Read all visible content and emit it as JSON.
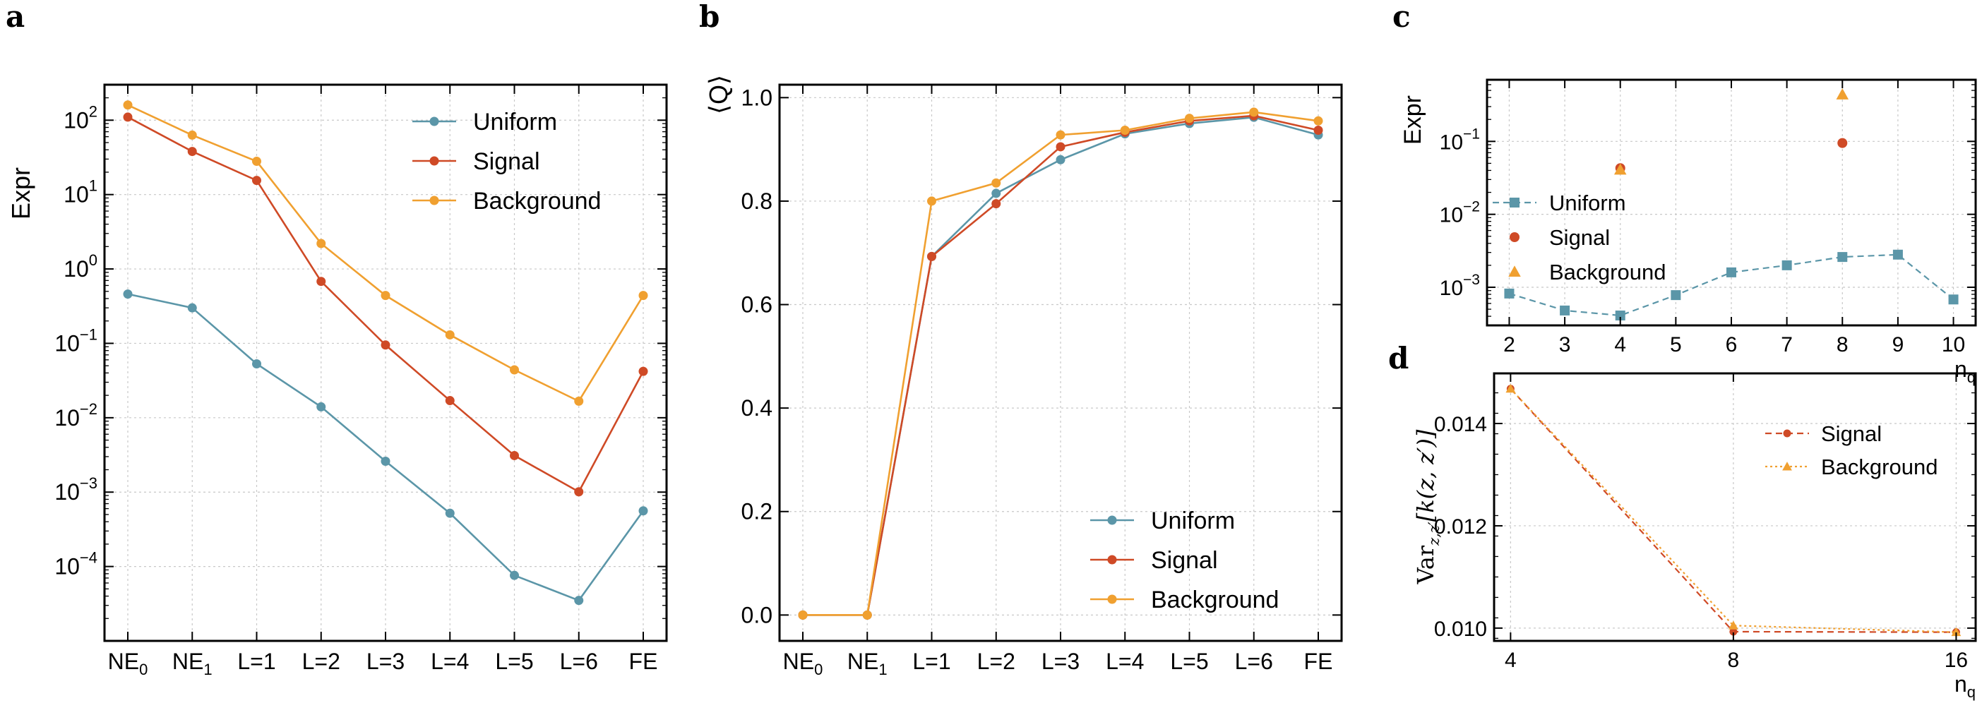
{
  "colors": {
    "uniform": "#5b96a8",
    "signal": "#cf4a26",
    "background": "#f0a030"
  },
  "panels": {
    "a": {
      "letter": "a",
      "chart_data": {
        "type": "line",
        "yscale": "log",
        "ylim": [
          1e-05,
          300
        ],
        "ylabel": "Expr",
        "xlabel": "",
        "categories": [
          {
            "base": "NE",
            "sub": "0"
          },
          {
            "base": "NE",
            "sub": "1"
          },
          {
            "base": "L=1"
          },
          {
            "base": "L=2"
          },
          {
            "base": "L=3"
          },
          {
            "base": "L=4"
          },
          {
            "base": "L=5"
          },
          {
            "base": "L=6"
          },
          {
            "base": "FE"
          }
        ],
        "yticks": [
          {
            "value": 0.0001,
            "base": "10",
            "exp": "−4"
          },
          {
            "value": 0.001,
            "base": "10",
            "exp": "−3"
          },
          {
            "value": 0.01,
            "base": "10",
            "exp": "−2"
          },
          {
            "value": 0.1,
            "base": "10",
            "exp": "−1"
          },
          {
            "value": 1,
            "base": "10",
            "exp": "0"
          },
          {
            "value": 10,
            "base": "10",
            "exp": "1"
          },
          {
            "value": 100,
            "base": "10",
            "exp": "2"
          }
        ],
        "legend_position": "top-right",
        "grid": true,
        "series": [
          {
            "name": "Uniform",
            "color_key": "uniform",
            "values": [
              0.46,
              0.3,
              0.053,
              0.014,
              0.0026,
              0.00052,
              7.6e-05,
              3.5e-05,
              0.00056
            ]
          },
          {
            "name": "Signal",
            "color_key": "signal",
            "values": [
              110,
              38,
              15.5,
              0.68,
              0.095,
              0.017,
              0.0031,
              0.00101,
              0.042
            ]
          },
          {
            "name": "Background",
            "color_key": "background",
            "values": [
              160,
              63,
              28,
              2.2,
              0.44,
              0.13,
              0.044,
              0.0167,
              0.44
            ]
          }
        ]
      }
    },
    "b": {
      "letter": "b",
      "chart_data": {
        "type": "line",
        "ylim": [
          -0.05,
          1.025
        ],
        "ylabel": "⟨Q⟩",
        "xlabel": "",
        "categories": [
          {
            "base": "NE",
            "sub": "0"
          },
          {
            "base": "NE",
            "sub": "1"
          },
          {
            "base": "L=1"
          },
          {
            "base": "L=2"
          },
          {
            "base": "L=3"
          },
          {
            "base": "L=4"
          },
          {
            "base": "L=5"
          },
          {
            "base": "L=6"
          },
          {
            "base": "FE"
          }
        ],
        "yticks": [
          {
            "value": 0.0,
            "label": "0.0"
          },
          {
            "value": 0.2,
            "label": "0.2"
          },
          {
            "value": 0.4,
            "label": "0.4"
          },
          {
            "value": 0.6,
            "label": "0.6"
          },
          {
            "value": 0.8,
            "label": "0.8"
          },
          {
            "value": 1.0,
            "label": "1.0"
          }
        ],
        "legend_position": "bottom-right",
        "grid": true,
        "series": [
          {
            "name": "Uniform",
            "color_key": "uniform",
            "values": [
              0.0,
              0.0,
              0.693,
              0.815,
              0.88,
              0.93,
              0.95,
              0.962,
              0.928
            ]
          },
          {
            "name": "Signal",
            "color_key": "signal",
            "values": [
              0.0,
              0.0,
              0.693,
              0.795,
              0.905,
              0.933,
              0.955,
              0.965,
              0.937
            ]
          },
          {
            "name": "Background",
            "color_key": "background",
            "values": [
              0.0,
              0.0,
              0.8,
              0.835,
              0.928,
              0.937,
              0.96,
              0.972,
              0.955
            ]
          }
        ]
      }
    },
    "c": {
      "letter": "c",
      "chart_data": {
        "type": "scatter",
        "yscale": "log",
        "ylim": [
          0.0003,
          0.7
        ],
        "xlim": [
          1.6,
          10.4
        ],
        "ylabel": "Expr",
        "xlabel": "n",
        "xlabel_sub": "q",
        "xticks": [
          2,
          3,
          4,
          5,
          6,
          7,
          8,
          9,
          10
        ],
        "yticks": [
          {
            "value": 0.001,
            "base": "10",
            "exp": "−3"
          },
          {
            "value": 0.01,
            "base": "10",
            "exp": "−2"
          },
          {
            "value": 0.1,
            "base": "10",
            "exp": "−1"
          }
        ],
        "legend_position": "center-left",
        "grid": true,
        "series": [
          {
            "name": "Uniform",
            "color_key": "uniform",
            "marker": "square",
            "linestyle": "dashed",
            "x": [
              2,
              3,
              4,
              5,
              6,
              7,
              8,
              9,
              10
            ],
            "values": [
              0.00082,
              0.00048,
              0.00041,
              0.00078,
              0.0016,
              0.002,
              0.0026,
              0.0028,
              0.00068
            ]
          },
          {
            "name": "Signal",
            "color_key": "signal",
            "marker": "circle",
            "linestyle": "none",
            "x": [
              4,
              8
            ],
            "values": [
              0.043,
              0.095
            ]
          },
          {
            "name": "Background",
            "color_key": "background",
            "marker": "triangle",
            "linestyle": "none",
            "x": [
              4,
              8
            ],
            "values": [
              0.041,
              0.44
            ]
          }
        ]
      }
    },
    "d": {
      "letter": "d",
      "chart_data": {
        "type": "line",
        "xscale": "log2",
        "xlim": [
          3.8,
          17
        ],
        "ylim": [
          0.00975,
          0.01498
        ],
        "ylabel": "Var",
        "ylabel_sub": "z,z′",
        "ylabel_arg": "[k(z, z′)]",
        "xlabel": "n",
        "xlabel_sub": "q",
        "xticks": [
          4,
          8,
          16
        ],
        "yticks": [
          {
            "value": 0.01,
            "label": "0.010"
          },
          {
            "value": 0.012,
            "label": "0.012"
          },
          {
            "value": 0.014,
            "label": "0.014"
          }
        ],
        "legend_position": "top-right",
        "grid": true,
        "series": [
          {
            "name": "Signal",
            "color_key": "signal",
            "marker": "circle",
            "linestyle": "dashed",
            "x": [
              4,
              8,
              16
            ],
            "values": [
              0.01468,
              0.00993,
              0.00992
            ]
          },
          {
            "name": "Background",
            "color_key": "background",
            "marker": "triangle",
            "linestyle": "dotted",
            "x": [
              4,
              8,
              16
            ],
            "values": [
              0.01468,
              0.01005,
              0.00992
            ]
          }
        ]
      }
    }
  }
}
